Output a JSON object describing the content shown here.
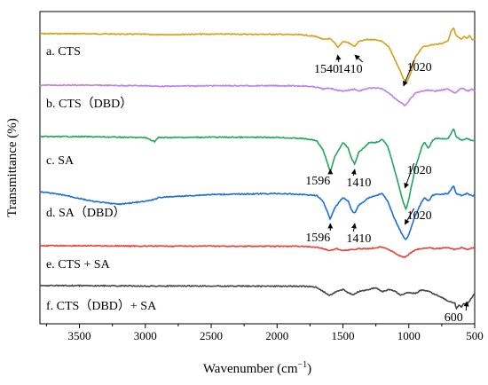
{
  "chart_data": {
    "type": "line",
    "title": "",
    "xlabel": "Wavenumber (cm",
    "xlabel_sup": "−1",
    "xlabel_end": ")",
    "ylabel": "Transmittance (%)",
    "xlim": [
      3800,
      500
    ],
    "x_reversed": true,
    "x_ticks": [
      "3500",
      "3000",
      "2500",
      "2000",
      "1500",
      "1000",
      "500"
    ],
    "x_tick_values": [
      3500,
      3000,
      2500,
      2000,
      1500,
      1000,
      500
    ],
    "grid": false,
    "legend": "none",
    "series": [
      {
        "label": "a.  CTS",
        "color": "#D4A017",
        "baseline": 0,
        "x": [
          3800,
          3500,
          3200,
          3000,
          2900,
          2700,
          2400,
          2200,
          2000,
          1800,
          1700,
          1650,
          1600,
          1560,
          1540,
          1500,
          1460,
          1440,
          1410,
          1380,
          1320,
          1250,
          1200,
          1150,
          1100,
          1060,
          1030,
          1020,
          1000,
          980,
          950,
          900,
          850,
          800,
          750,
          700,
          680,
          660,
          640,
          620,
          600,
          580,
          560,
          540,
          520,
          500
        ],
        "y": [
          0,
          0,
          0.2,
          0.3,
          0.6,
          0.3,
          0.2,
          0.3,
          0.3,
          0.6,
          1.5,
          3.0,
          2.5,
          5.0,
          7.0,
          4.0,
          4.5,
          5.5,
          6.5,
          4.0,
          3.0,
          3.0,
          4.0,
          7.0,
          14.0,
          20.0,
          24.5,
          25.0,
          23.0,
          19.0,
          12.0,
          7.0,
          6.0,
          5.5,
          5.0,
          3.5,
          -1.5,
          -3.0,
          1.0,
          2.0,
          3.0,
          1.5,
          2.5,
          1.0,
          3.0,
          3.0
        ]
      },
      {
        "label": "b.  CTS（DBD）",
        "color": "#BF7FE5",
        "baseline": 1,
        "x": [
          3800,
          3500,
          3200,
          3000,
          2900,
          2500,
          2000,
          1800,
          1700,
          1650,
          1600,
          1550,
          1500,
          1450,
          1410,
          1380,
          1300,
          1250,
          1200,
          1150,
          1100,
          1060,
          1030,
          1020,
          1000,
          950,
          900,
          850,
          800,
          700,
          650,
          600,
          550,
          520,
          500
        ],
        "y": [
          0,
          0,
          0.2,
          0.3,
          0.6,
          0.3,
          0.3,
          0.4,
          1.0,
          2.0,
          1.5,
          2.5,
          3.0,
          2.5,
          2.0,
          3.0,
          1.5,
          1.5,
          2.0,
          4.0,
          7.0,
          9.0,
          10.5,
          10.0,
          8.0,
          4.0,
          3.0,
          2.5,
          3.0,
          2.0,
          4.0,
          1.5,
          3.0,
          2.0,
          3.0
        ]
      },
      {
        "label": "c.  SA",
        "color": "#22A55C",
        "baseline": 2,
        "x": [
          3800,
          3500,
          3200,
          3000,
          2930,
          2900,
          2500,
          2000,
          1800,
          1700,
          1650,
          1620,
          1600,
          1596,
          1560,
          1500,
          1460,
          1430,
          1410,
          1380,
          1300,
          1250,
          1200,
          1160,
          1120,
          1080,
          1050,
          1030,
          1020,
          1000,
          950,
          900,
          880,
          850,
          820,
          800,
          700,
          660,
          640,
          600,
          560,
          520,
          500
        ],
        "y": [
          0,
          0,
          0.3,
          0.5,
          2.5,
          0.5,
          0.3,
          0.4,
          1.0,
          2.0,
          7.0,
          13.0,
          17.5,
          18.0,
          10.0,
          3.0,
          6.0,
          12.0,
          14.0,
          8.0,
          3.0,
          3.0,
          1.5,
          5.0,
          14.0,
          24.0,
          32.0,
          36.0,
          37.0,
          32.0,
          16.0,
          5.0,
          3.0,
          6.0,
          2.0,
          1.0,
          1.0,
          -4.0,
          0.0,
          2.0,
          1.0,
          2.0,
          2.0
        ]
      },
      {
        "label": "d.  SA（DBD）",
        "color": "#1A6FD8",
        "baseline": 3,
        "x": [
          3800,
          3600,
          3400,
          3200,
          3000,
          2930,
          2900,
          2500,
          2000,
          1800,
          1700,
          1650,
          1620,
          1600,
          1596,
          1560,
          1500,
          1460,
          1430,
          1410,
          1380,
          1300,
          1250,
          1200,
          1160,
          1120,
          1080,
          1050,
          1030,
          1020,
          1000,
          950,
          900,
          880,
          850,
          820,
          800,
          700,
          660,
          640,
          600,
          560,
          520,
          500
        ],
        "y": [
          0,
          2.0,
          5.0,
          6.5,
          5.0,
          4.0,
          3.0,
          1.5,
          1.0,
          1.5,
          2.0,
          5.0,
          10.0,
          13.5,
          14.0,
          8.0,
          3.0,
          5.0,
          10.0,
          11.0,
          7.0,
          3.0,
          2.0,
          1.0,
          5.0,
          12.0,
          18.0,
          22.0,
          24.0,
          24.5,
          22.0,
          12.0,
          5.0,
          3.0,
          5.0,
          2.0,
          1.5,
          1.0,
          -3.0,
          1.0,
          2.0,
          1.0,
          2.0,
          2.0
        ]
      },
      {
        "label": "e.  CTS + SA",
        "color": "#E8403A",
        "baseline": 4,
        "x": [
          3800,
          3500,
          3000,
          2500,
          2000,
          1800,
          1700,
          1650,
          1600,
          1550,
          1500,
          1450,
          1410,
          1380,
          1300,
          1250,
          1200,
          1150,
          1100,
          1060,
          1030,
          1020,
          1000,
          950,
          900,
          850,
          800,
          700,
          650,
          600,
          550,
          520,
          500
        ],
        "y": [
          0,
          0,
          0.2,
          0.2,
          0.3,
          0.3,
          0.8,
          1.5,
          2.5,
          1.5,
          2.5,
          2.0,
          2.0,
          1.5,
          1.5,
          1.0,
          0.5,
          2.0,
          4.0,
          5.5,
          6.0,
          5.5,
          4.5,
          2.0,
          1.5,
          1.0,
          1.5,
          1.0,
          2.0,
          1.0,
          2.0,
          1.0,
          1.0
        ]
      },
      {
        "label": "f.  CTS（DBD）+ SA",
        "color": "#444444",
        "baseline": 5,
        "x": [
          3800,
          3500,
          3000,
          2500,
          2000,
          1800,
          1700,
          1650,
          1600,
          1550,
          1500,
          1450,
          1420,
          1380,
          1300,
          1250,
          1200,
          1150,
          1100,
          1060,
          1030,
          1000,
          950,
          900,
          850,
          800,
          750,
          700,
          650,
          640,
          620,
          600,
          580,
          560,
          540,
          520,
          500
        ],
        "y": [
          0,
          0,
          0.2,
          0.2,
          0.3,
          0.3,
          0.8,
          3.0,
          5.0,
          3.0,
          2.0,
          4.0,
          4.5,
          3.0,
          2.0,
          1.0,
          3.0,
          2.0,
          3.0,
          5.0,
          4.0,
          3.5,
          4.0,
          2.0,
          3.0,
          4.5,
          6.0,
          8.0,
          9.0,
          12.0,
          10.0,
          11.0,
          9.0,
          10.0,
          8.0,
          6.0,
          4.0
        ]
      }
    ],
    "annotations": [
      {
        "text": "1540",
        "series": 0,
        "x": 1540
      },
      {
        "text": "1410",
        "series": 0,
        "x": 1410
      },
      {
        "text": "1020",
        "series": 0,
        "x": 1020
      },
      {
        "text": "1596",
        "series": 2,
        "x": 1596
      },
      {
        "text": "1410",
        "series": 2,
        "x": 1410
      },
      {
        "text": "1020",
        "series": 2,
        "x": 1020
      },
      {
        "text": "1596",
        "series": 3,
        "x": 1596
      },
      {
        "text": "1410",
        "series": 3,
        "x": 1410
      },
      {
        "text": "1020",
        "series": 3,
        "x": 1020
      },
      {
        "text": "600",
        "series": 5,
        "x": 600
      }
    ]
  }
}
